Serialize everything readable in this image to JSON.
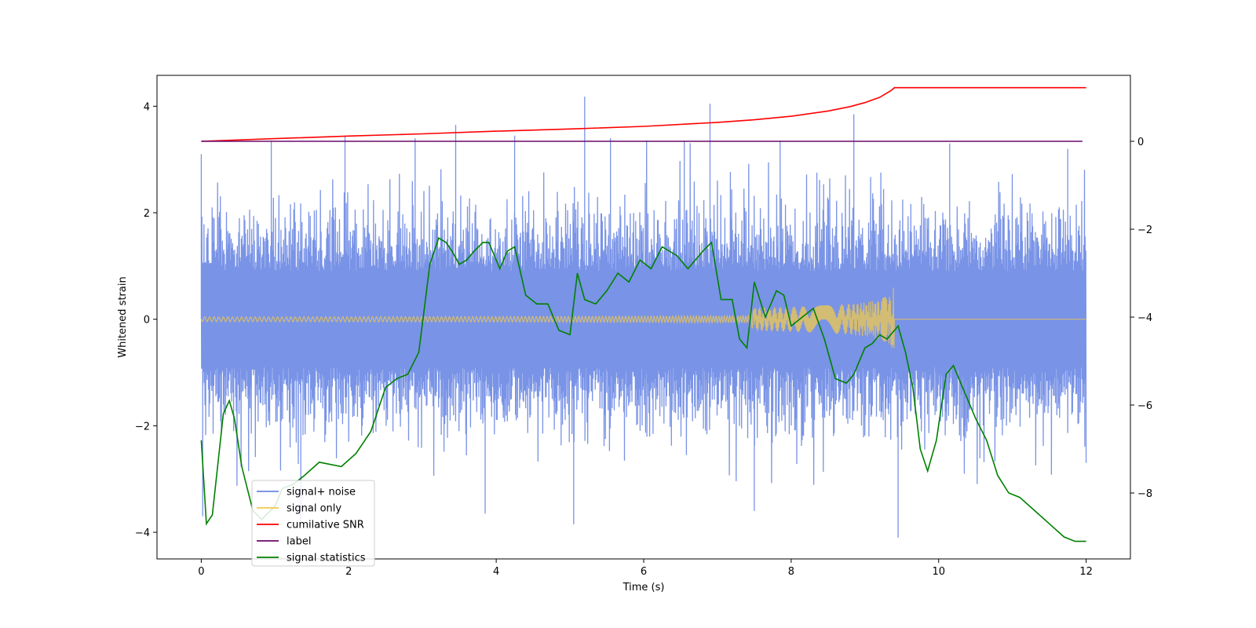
{
  "chart_data": {
    "type": "line",
    "title": "",
    "xlabel": "Time (s)",
    "ylabel": "Whitened strain",
    "y2label": "",
    "xlim": [
      -0.6,
      12.6
    ],
    "ylim": [
      -4.5,
      4.58
    ],
    "y2lim": [
      -9.5,
      1.5
    ],
    "xticks": [
      0,
      2,
      4,
      6,
      8,
      10,
      12
    ],
    "yticks": [
      -4,
      -2,
      0,
      2,
      4
    ],
    "y2ticks": [
      -8,
      -6,
      -4,
      -2,
      0
    ],
    "legend_position": "lower-left",
    "series": [
      {
        "name": "signal+ noise",
        "axis": "left",
        "color": "#6a87e3",
        "kind": "noise",
        "x_range": [
          0,
          12
        ],
        "core_amplitude": 2.0,
        "peak_spikes": [
          [
            0.0,
            3.1
          ],
          [
            0.02,
            -3.7
          ],
          [
            0.95,
            3.35
          ],
          [
            1.35,
            -3.9
          ],
          [
            1.95,
            3.45
          ],
          [
            2.9,
            3.4
          ],
          [
            3.45,
            3.65
          ],
          [
            3.85,
            -3.65
          ],
          [
            4.25,
            3.45
          ],
          [
            5.05,
            -3.85
          ],
          [
            5.2,
            4.18
          ],
          [
            5.55,
            3.4
          ],
          [
            6.55,
            3.35
          ],
          [
            6.9,
            4.05
          ],
          [
            7.5,
            -3.6
          ],
          [
            7.85,
            3.35
          ],
          [
            8.85,
            3.85
          ],
          [
            9.45,
            -4.1
          ],
          [
            10.15,
            3.3
          ],
          [
            11.75,
            3.2
          ]
        ]
      },
      {
        "name": "signal only",
        "axis": "left",
        "color": "#f2c94c",
        "kind": "chirp",
        "t_merger": 9.4,
        "max_amplitude": 0.6
      },
      {
        "name": "cumilative SNR",
        "axis": "right",
        "color": "#ff0000",
        "x": [
          0,
          1,
          2,
          3,
          4,
          5,
          6,
          7,
          7.5,
          8,
          8.5,
          8.8,
          9.0,
          9.2,
          9.35,
          9.4,
          12
        ],
        "values": [
          0.0,
          0.06,
          0.12,
          0.17,
          0.23,
          0.28,
          0.34,
          0.43,
          0.49,
          0.57,
          0.69,
          0.79,
          0.88,
          1.0,
          1.15,
          1.22,
          1.22
        ]
      },
      {
        "name": "label",
        "axis": "right",
        "color": "#6a0a6a",
        "x": [
          0,
          11.95
        ],
        "values": [
          0,
          0
        ]
      },
      {
        "name": "signal statistics",
        "axis": "right",
        "color": "#008000",
        "x": [
          0.0,
          0.07,
          0.15,
          0.3,
          0.38,
          0.45,
          0.55,
          0.7,
          0.82,
          1.0,
          1.1,
          1.25,
          1.4,
          1.6,
          1.9,
          2.1,
          2.3,
          2.5,
          2.65,
          2.8,
          2.95,
          3.1,
          3.22,
          3.32,
          3.4,
          3.5,
          3.6,
          3.7,
          3.82,
          3.9,
          4.05,
          4.15,
          4.25,
          4.4,
          4.55,
          4.7,
          4.85,
          5.0,
          5.1,
          5.2,
          5.35,
          5.5,
          5.65,
          5.8,
          5.95,
          6.1,
          6.25,
          6.35,
          6.45,
          6.6,
          6.8,
          6.92,
          7.05,
          7.2,
          7.3,
          7.4,
          7.5,
          7.65,
          7.8,
          7.9,
          8.0,
          8.15,
          8.3,
          8.45,
          8.6,
          8.75,
          8.85,
          9.0,
          9.1,
          9.2,
          9.3,
          9.45,
          9.55,
          9.65,
          9.75,
          9.85,
          9.97,
          10.1,
          10.2,
          10.35,
          10.5,
          10.65,
          10.8,
          10.95,
          11.1,
          11.3,
          11.5,
          11.7,
          11.85,
          12.0
        ],
        "values": [
          -6.8,
          -8.7,
          -8.5,
          -6.2,
          -5.9,
          -6.3,
          -7.4,
          -8.4,
          -8.6,
          -8.3,
          -7.9,
          -7.8,
          -7.6,
          -7.3,
          -7.4,
          -7.1,
          -6.6,
          -5.6,
          -5.4,
          -5.3,
          -4.8,
          -2.8,
          -2.2,
          -2.3,
          -2.5,
          -2.8,
          -2.7,
          -2.5,
          -2.3,
          -2.3,
          -2.9,
          -2.5,
          -2.4,
          -3.5,
          -3.7,
          -3.7,
          -4.3,
          -4.4,
          -3.0,
          -3.6,
          -3.7,
          -3.4,
          -3.0,
          -3.2,
          -2.7,
          -2.9,
          -2.4,
          -2.5,
          -2.6,
          -2.9,
          -2.5,
          -2.3,
          -3.6,
          -3.6,
          -4.5,
          -4.7,
          -3.2,
          -4.0,
          -3.4,
          -3.5,
          -4.2,
          -4.0,
          -3.8,
          -4.5,
          -5.4,
          -5.5,
          -5.3,
          -4.7,
          -4.6,
          -4.4,
          -4.5,
          -4.2,
          -4.8,
          -5.6,
          -7.0,
          -7.5,
          -6.8,
          -5.3,
          -5.1,
          -5.7,
          -6.3,
          -6.8,
          -7.6,
          -8.0,
          -8.1,
          -8.4,
          -8.7,
          -9.0,
          -9.1,
          -9.1
        ]
      }
    ]
  }
}
